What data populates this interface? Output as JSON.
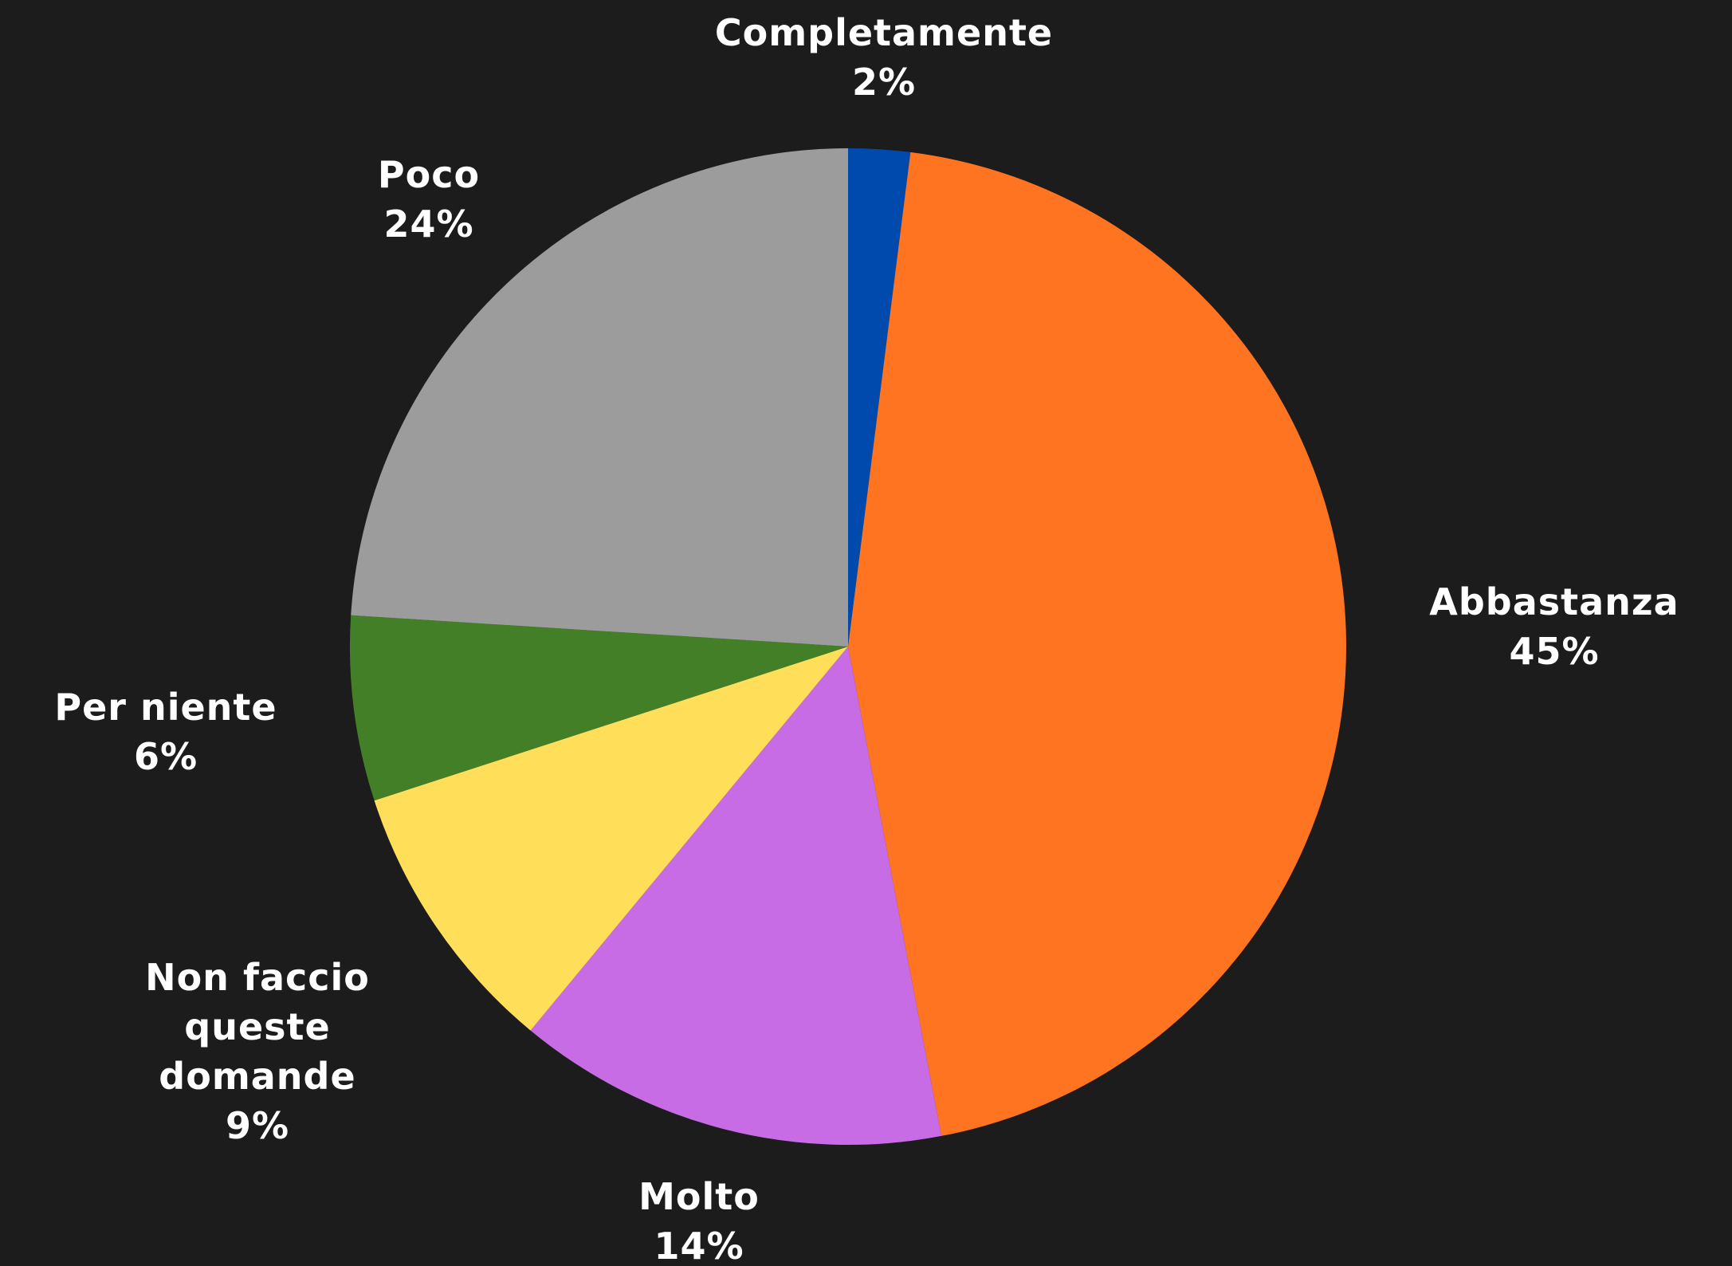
{
  "chart_data": {
    "type": "pie",
    "categories": [
      "Completamente",
      "Abbastanza",
      "Molto",
      "Non faccio queste domande",
      "Per niente",
      "Poco"
    ],
    "values": [
      2,
      45,
      14,
      9,
      6,
      24
    ],
    "value_labels": [
      "2%",
      "45%",
      "14%",
      "9%",
      "6%",
      "24%"
    ],
    "colors": [
      "#004aad",
      "#ff7420",
      "#c86ce6",
      "#ffde59",
      "#437f27",
      "#9c9c9c"
    ]
  }
}
